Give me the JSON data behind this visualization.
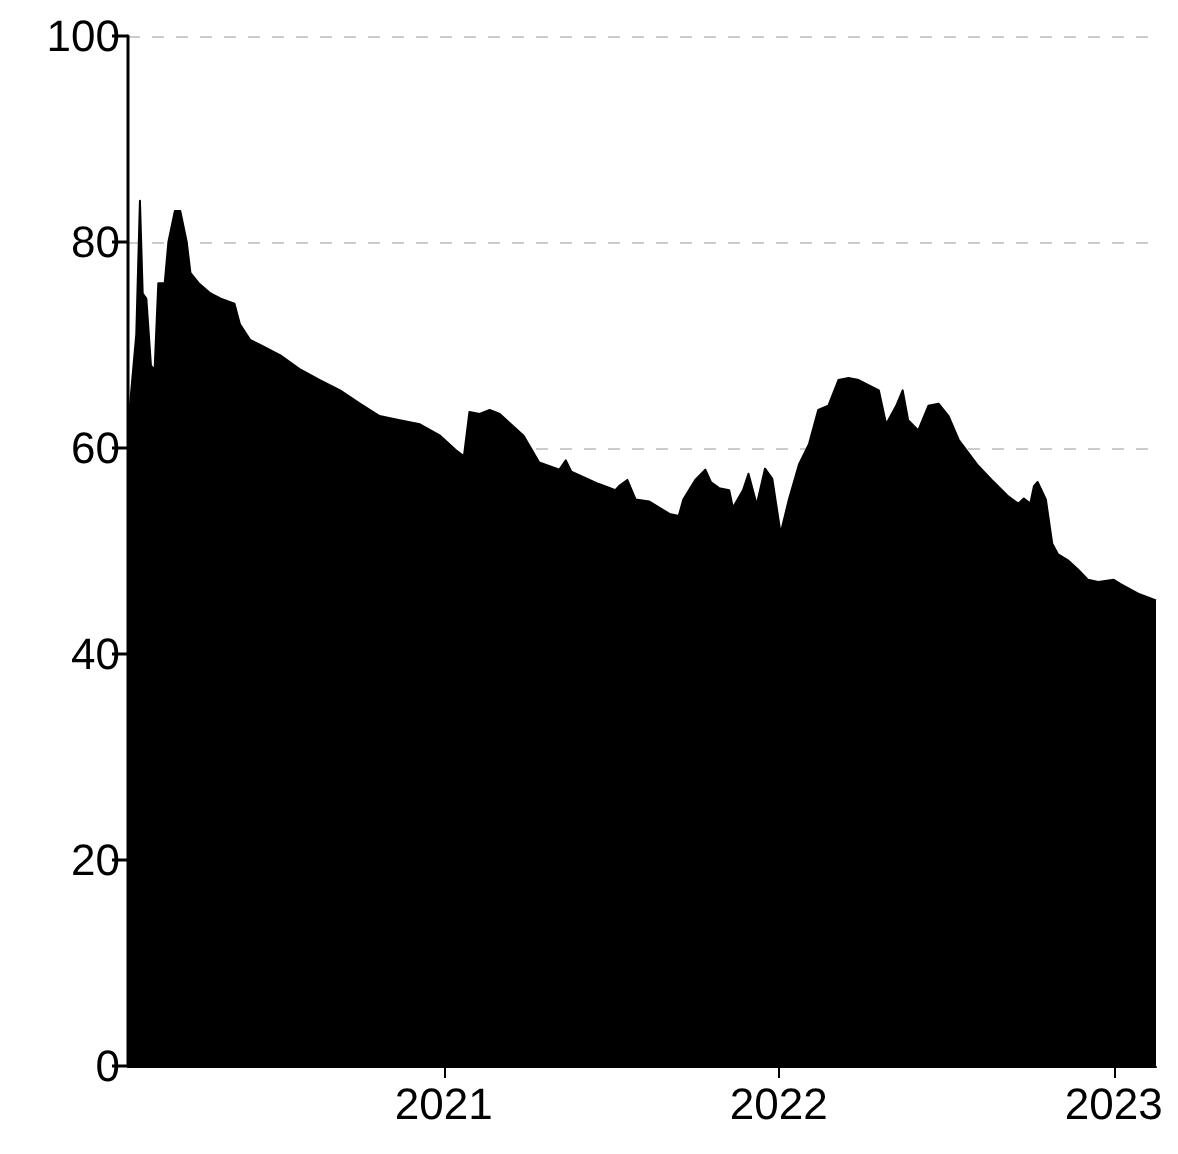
{
  "chart_data": {
    "type": "area",
    "color": "#000000",
    "x": [
      "2020-01-23",
      "2020-02-01",
      "2020-02-05",
      "2020-02-08",
      "2020-02-12",
      "2020-02-17",
      "2020-02-21",
      "2020-02-25",
      "2020-03-03",
      "2020-03-07",
      "2020-03-14",
      "2020-03-20",
      "2020-03-27",
      "2020-03-31",
      "2020-04-09",
      "2020-04-22",
      "2020-05-03",
      "2020-05-18",
      "2020-05-24",
      "2020-06-04",
      "2020-06-15",
      "2020-07-07",
      "2020-07-29",
      "2020-08-19",
      "2020-09-10",
      "2020-10-02",
      "2020-10-23",
      "2020-11-14",
      "2020-12-06",
      "2020-12-28",
      "2021-01-14",
      "2021-01-23",
      "2021-01-29",
      "2021-02-09",
      "2021-02-20",
      "2021-03-03",
      "2021-03-29",
      "2021-04-15",
      "2021-05-07",
      "2021-05-14",
      "2021-05-20",
      "2021-06-19",
      "2021-07-07",
      "2021-07-11",
      "2021-07-20",
      "2021-07-29",
      "2021-08-13",
      "2021-09-04",
      "2021-09-14",
      "2021-09-19",
      "2021-10-02",
      "2021-10-13",
      "2021-10-19",
      "2021-10-28",
      "2021-11-08",
      "2021-11-12",
      "2021-11-23",
      "2021-11-29",
      "2021-12-08",
      "2021-12-17",
      "2021-12-25",
      "2022-01-03",
      "2022-01-12",
      "2022-01-23",
      "2022-02-03",
      "2022-02-13",
      "2022-02-24",
      "2022-03-07",
      "2022-03-18",
      "2022-03-29",
      "2022-04-20",
      "2022-04-28",
      "2022-05-09",
      "2022-05-16",
      "2022-05-22",
      "2022-06-02",
      "2022-06-13",
      "2022-06-24",
      "2022-07-05",
      "2022-07-16",
      "2022-08-06",
      "2022-08-21",
      "2022-09-08",
      "2022-09-19",
      "2022-09-25",
      "2022-10-02",
      "2022-10-06",
      "2022-10-10",
      "2022-10-19",
      "2022-10-26",
      "2022-11-01",
      "2022-11-12",
      "2022-11-23",
      "2022-12-04",
      "2022-12-15",
      "2023-01-01",
      "2023-01-08",
      "2023-01-29",
      "2023-02-16"
    ],
    "values": [
      62,
      71,
      84,
      75,
      74.5,
      68,
      67.6,
      76,
      76,
      80,
      83,
      83,
      80,
      77,
      76,
      75,
      74.5,
      74,
      72,
      70.5,
      70,
      69,
      67.6,
      66.6,
      65.6,
      64.3,
      63.1,
      62.7,
      62.3,
      61.2,
      59.8,
      59.2,
      63.5,
      63.3,
      63.7,
      63.3,
      61.2,
      58.6,
      57.9,
      58.8,
      57.7,
      56.5,
      55.9,
      56.3,
      56.9,
      55,
      54.8,
      53.6,
      53.4,
      55,
      56.9,
      57.9,
      56.7,
      56.1,
      55.9,
      54.2,
      55.9,
      57.5,
      54.5,
      58,
      57,
      51.7,
      55,
      58.4,
      60.4,
      63.7,
      64.1,
      66.6,
      66.8,
      66.6,
      65.6,
      62.3,
      64.1,
      65.6,
      62.7,
      61.7,
      64.1,
      64.3,
      63.1,
      60.8,
      58.3,
      56.9,
      55.3,
      54.6,
      55.1,
      54.6,
      56.3,
      56.7,
      55,
      50.7,
      49.7,
      49.1,
      48.2,
      47.2,
      47,
      47.2,
      46.8,
      45.8,
      45.2
    ],
    "xlim": [
      "2020-01-23",
      "2023-02-16"
    ],
    "xticks": [
      "2021",
      "2022",
      "2023"
    ],
    "ylim": [
      0,
      100
    ],
    "yticks": [
      0,
      20,
      40,
      60,
      80,
      100
    ],
    "grid": "y",
    "marker": "none"
  }
}
